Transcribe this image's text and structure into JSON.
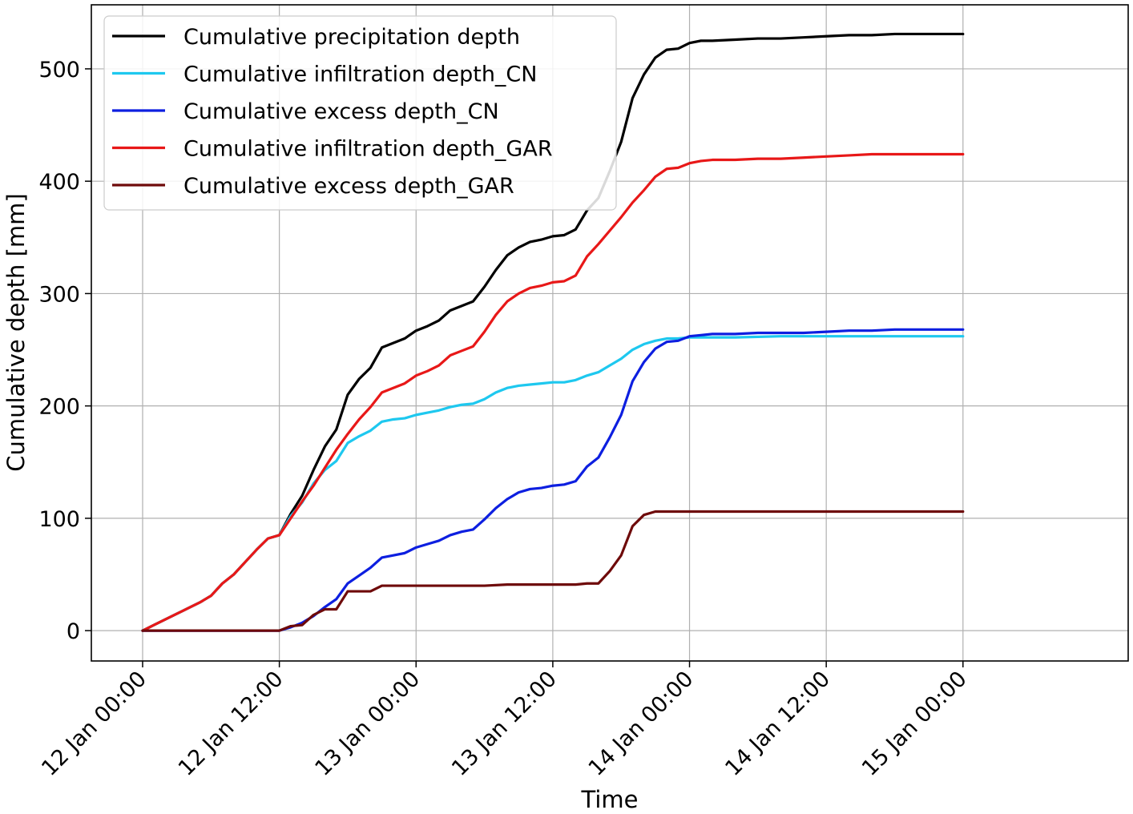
{
  "chart_data": {
    "type": "line",
    "xlabel": "Time",
    "ylabel": "Cumulative depth [mm]",
    "x_unit": "hours since 12 Jan 00:00",
    "xlim": [
      -4.5,
      86.5
    ],
    "ylim": [
      -27,
      557
    ],
    "grid": true,
    "legend_position": "top-left",
    "x_ticks": [
      {
        "value": 0,
        "label": "12 Jan 00:00"
      },
      {
        "value": 12,
        "label": "12 Jan 12:00"
      },
      {
        "value": 24,
        "label": "13 Jan 00:00"
      },
      {
        "value": 36,
        "label": "13 Jan 12:00"
      },
      {
        "value": 48,
        "label": "14 Jan 00:00"
      },
      {
        "value": 60,
        "label": "14 Jan 12:00"
      },
      {
        "value": 72,
        "label": "15 Jan 00:00"
      }
    ],
    "y_ticks": [
      {
        "value": 0,
        "label": "0"
      },
      {
        "value": 100,
        "label": "100"
      },
      {
        "value": 200,
        "label": "200"
      },
      {
        "value": 300,
        "label": "300"
      },
      {
        "value": 400,
        "label": "400"
      },
      {
        "value": 500,
        "label": "500"
      }
    ],
    "series": [
      {
        "name": "Cumulative precipitation depth",
        "color": "#000000",
        "points": [
          [
            0,
            0
          ],
          [
            1,
            5
          ],
          [
            2,
            10
          ],
          [
            3,
            15
          ],
          [
            4,
            20
          ],
          [
            5,
            25
          ],
          [
            6,
            31
          ],
          [
            7,
            42
          ],
          [
            8,
            50
          ],
          [
            9,
            61
          ],
          [
            10,
            72
          ],
          [
            11,
            82
          ],
          [
            12,
            85
          ],
          [
            13,
            104
          ],
          [
            14,
            120
          ],
          [
            15,
            143
          ],
          [
            16,
            164
          ],
          [
            17,
            179
          ],
          [
            18,
            210
          ],
          [
            19,
            224
          ],
          [
            20,
            234
          ],
          [
            21,
            252
          ],
          [
            22,
            256
          ],
          [
            23,
            260
          ],
          [
            24,
            267
          ],
          [
            25,
            271
          ],
          [
            26,
            276
          ],
          [
            27,
            285
          ],
          [
            28,
            289
          ],
          [
            29,
            293
          ],
          [
            30,
            306
          ],
          [
            31,
            321
          ],
          [
            32,
            334
          ],
          [
            33,
            341
          ],
          [
            34,
            346
          ],
          [
            35,
            348
          ],
          [
            36,
            351
          ],
          [
            37,
            352
          ],
          [
            38,
            357
          ],
          [
            39,
            374
          ],
          [
            40,
            385
          ],
          [
            41,
            409
          ],
          [
            42,
            435
          ],
          [
            43,
            474
          ],
          [
            44,
            495
          ],
          [
            45,
            510
          ],
          [
            46,
            517
          ],
          [
            47,
            518
          ],
          [
            48,
            523
          ],
          [
            49,
            525
          ],
          [
            50,
            525
          ],
          [
            52,
            526
          ],
          [
            54,
            527
          ],
          [
            56,
            527
          ],
          [
            58,
            528
          ],
          [
            60,
            529
          ],
          [
            62,
            530
          ],
          [
            64,
            530
          ],
          [
            66,
            531
          ],
          [
            68,
            531
          ],
          [
            70,
            531
          ],
          [
            72,
            531
          ]
        ]
      },
      {
        "name": "Cumulative infiltration depth_CN",
        "color": "#1ec8ef",
        "points": [
          [
            0,
            0
          ],
          [
            1,
            5
          ],
          [
            2,
            10
          ],
          [
            3,
            15
          ],
          [
            4,
            20
          ],
          [
            5,
            25
          ],
          [
            6,
            31
          ],
          [
            7,
            42
          ],
          [
            8,
            50
          ],
          [
            9,
            61
          ],
          [
            10,
            72
          ],
          [
            11,
            82
          ],
          [
            12,
            85
          ],
          [
            13,
            102
          ],
          [
            14,
            114
          ],
          [
            15,
            131
          ],
          [
            16,
            143
          ],
          [
            17,
            151
          ],
          [
            18,
            167
          ],
          [
            19,
            173
          ],
          [
            20,
            178
          ],
          [
            21,
            186
          ],
          [
            22,
            188
          ],
          [
            23,
            189
          ],
          [
            24,
            192
          ],
          [
            25,
            194
          ],
          [
            26,
            196
          ],
          [
            27,
            199
          ],
          [
            28,
            201
          ],
          [
            29,
            202
          ],
          [
            30,
            206
          ],
          [
            31,
            212
          ],
          [
            32,
            216
          ],
          [
            33,
            218
          ],
          [
            34,
            219
          ],
          [
            35,
            220
          ],
          [
            36,
            221
          ],
          [
            37,
            221
          ],
          [
            38,
            223
          ],
          [
            39,
            227
          ],
          [
            40,
            230
          ],
          [
            41,
            236
          ],
          [
            42,
            242
          ],
          [
            43,
            250
          ],
          [
            44,
            255
          ],
          [
            45,
            258
          ],
          [
            46,
            260
          ],
          [
            47,
            260
          ],
          [
            48,
            261
          ],
          [
            50,
            261
          ],
          [
            52,
            261
          ],
          [
            56,
            262
          ],
          [
            60,
            262
          ],
          [
            64,
            262
          ],
          [
            68,
            262
          ],
          [
            72,
            262
          ]
        ]
      },
      {
        "name": "Cumulative excess depth_CN",
        "color": "#0d1fe0",
        "points": [
          [
            0,
            0
          ],
          [
            11,
            0
          ],
          [
            12,
            0
          ],
          [
            13,
            3
          ],
          [
            14,
            7
          ],
          [
            15,
            13
          ],
          [
            16,
            21
          ],
          [
            17,
            28
          ],
          [
            18,
            42
          ],
          [
            19,
            49
          ],
          [
            20,
            56
          ],
          [
            21,
            65
          ],
          [
            22,
            67
          ],
          [
            23,
            69
          ],
          [
            24,
            74
          ],
          [
            25,
            77
          ],
          [
            26,
            80
          ],
          [
            27,
            85
          ],
          [
            28,
            88
          ],
          [
            29,
            90
          ],
          [
            30,
            99
          ],
          [
            31,
            109
          ],
          [
            32,
            117
          ],
          [
            33,
            123
          ],
          [
            34,
            126
          ],
          [
            35,
            127
          ],
          [
            36,
            129
          ],
          [
            37,
            130
          ],
          [
            38,
            133
          ],
          [
            39,
            146
          ],
          [
            40,
            154
          ],
          [
            41,
            172
          ],
          [
            42,
            192
          ],
          [
            43,
            222
          ],
          [
            44,
            239
          ],
          [
            45,
            251
          ],
          [
            46,
            257
          ],
          [
            47,
            258
          ],
          [
            48,
            262
          ],
          [
            49,
            263
          ],
          [
            50,
            264
          ],
          [
            52,
            264
          ],
          [
            54,
            265
          ],
          [
            56,
            265
          ],
          [
            58,
            265
          ],
          [
            60,
            266
          ],
          [
            62,
            267
          ],
          [
            64,
            267
          ],
          [
            66,
            268
          ],
          [
            68,
            268
          ],
          [
            70,
            268
          ],
          [
            72,
            268
          ]
        ]
      },
      {
        "name": "Cumulative infiltration depth_GAR",
        "color": "#e81818",
        "points": [
          [
            0,
            0
          ],
          [
            1,
            5
          ],
          [
            2,
            10
          ],
          [
            3,
            15
          ],
          [
            4,
            20
          ],
          [
            5,
            25
          ],
          [
            6,
            31
          ],
          [
            7,
            42
          ],
          [
            8,
            50
          ],
          [
            9,
            61
          ],
          [
            10,
            72
          ],
          [
            11,
            82
          ],
          [
            12,
            85
          ],
          [
            13,
            100
          ],
          [
            14,
            115
          ],
          [
            15,
            129
          ],
          [
            16,
            145
          ],
          [
            17,
            161
          ],
          [
            18,
            175
          ],
          [
            19,
            188
          ],
          [
            20,
            199
          ],
          [
            21,
            212
          ],
          [
            22,
            216
          ],
          [
            23,
            220
          ],
          [
            24,
            227
          ],
          [
            25,
            231
          ],
          [
            26,
            236
          ],
          [
            27,
            245
          ],
          [
            28,
            249
          ],
          [
            29,
            253
          ],
          [
            30,
            266
          ],
          [
            31,
            281
          ],
          [
            32,
            293
          ],
          [
            33,
            300
          ],
          [
            34,
            305
          ],
          [
            35,
            307
          ],
          [
            36,
            310
          ],
          [
            37,
            311
          ],
          [
            38,
            316
          ],
          [
            39,
            333
          ],
          [
            40,
            344
          ],
          [
            41,
            356
          ],
          [
            42,
            368
          ],
          [
            43,
            381
          ],
          [
            44,
            392
          ],
          [
            45,
            404
          ],
          [
            46,
            411
          ],
          [
            47,
            412
          ],
          [
            48,
            416
          ],
          [
            49,
            418
          ],
          [
            50,
            419
          ],
          [
            52,
            419
          ],
          [
            54,
            420
          ],
          [
            56,
            420
          ],
          [
            58,
            421
          ],
          [
            60,
            422
          ],
          [
            62,
            423
          ],
          [
            64,
            424
          ],
          [
            66,
            424
          ],
          [
            68,
            424
          ],
          [
            70,
            424
          ],
          [
            72,
            424
          ]
        ]
      },
      {
        "name": "Cumulative excess depth_GAR",
        "color": "#6e0a0a",
        "points": [
          [
            0,
            0
          ],
          [
            11,
            0
          ],
          [
            12,
            0
          ],
          [
            13,
            4
          ],
          [
            14,
            5
          ],
          [
            15,
            14
          ],
          [
            16,
            19
          ],
          [
            17,
            19
          ],
          [
            18,
            35
          ],
          [
            19,
            35
          ],
          [
            20,
            35
          ],
          [
            21,
            40
          ],
          [
            22,
            40
          ],
          [
            23,
            40
          ],
          [
            24,
            40
          ],
          [
            26,
            40
          ],
          [
            28,
            40
          ],
          [
            30,
            40
          ],
          [
            32,
            41
          ],
          [
            34,
            41
          ],
          [
            36,
            41
          ],
          [
            38,
            41
          ],
          [
            39,
            42
          ],
          [
            40,
            42
          ],
          [
            41,
            53
          ],
          [
            42,
            67
          ],
          [
            43,
            93
          ],
          [
            44,
            103
          ],
          [
            45,
            106
          ],
          [
            46,
            106
          ],
          [
            47,
            106
          ],
          [
            48,
            106
          ],
          [
            50,
            106
          ],
          [
            56,
            106
          ],
          [
            60,
            106
          ],
          [
            64,
            106
          ],
          [
            68,
            106
          ],
          [
            72,
            106
          ]
        ]
      }
    ]
  }
}
